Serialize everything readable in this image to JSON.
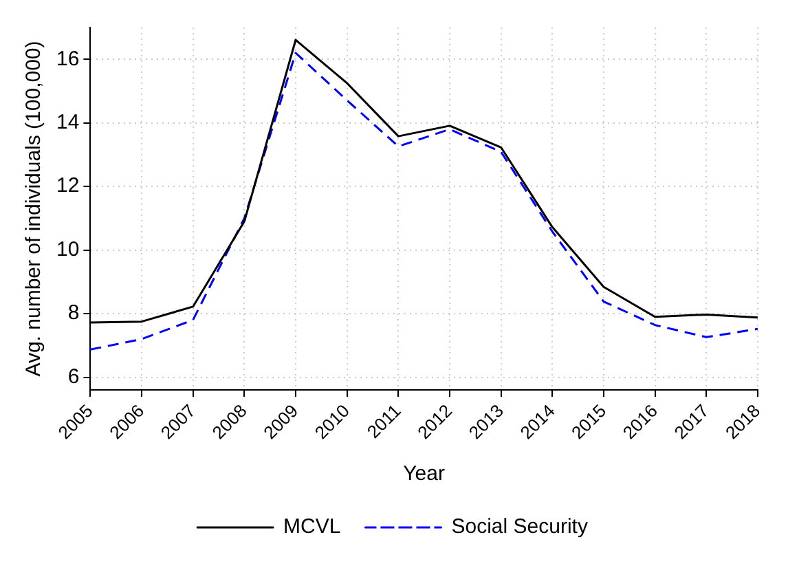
{
  "chart_data": {
    "type": "line",
    "xlabel": "Year",
    "ylabel": "Avg. number of individuals (100,000)",
    "categories": [
      "2005",
      "2006",
      "2007",
      "2008",
      "2009",
      "2010",
      "2011",
      "2012",
      "2013",
      "2014",
      "2015",
      "2016",
      "2017",
      "2018"
    ],
    "series": [
      {
        "name": "MCVL",
        "color": "#000000",
        "line_style": "solid",
        "values": [
          7.72,
          7.75,
          8.22,
          10.9,
          16.61,
          15.25,
          13.58,
          13.91,
          13.23,
          10.72,
          8.84,
          7.9,
          7.97,
          7.88
        ]
      },
      {
        "name": "Social Security",
        "color": "#0000ff",
        "line_style": "dashed",
        "values": [
          6.87,
          7.2,
          7.8,
          11.0,
          16.2,
          14.71,
          13.26,
          13.8,
          13.09,
          10.58,
          8.38,
          7.64,
          7.26,
          7.52
        ]
      }
    ],
    "ylim": [
      5.6,
      17
    ],
    "yticks": [
      6,
      8,
      10,
      12,
      14,
      16
    ],
    "grid": true,
    "legend": "bottom",
    "marker": "none"
  }
}
